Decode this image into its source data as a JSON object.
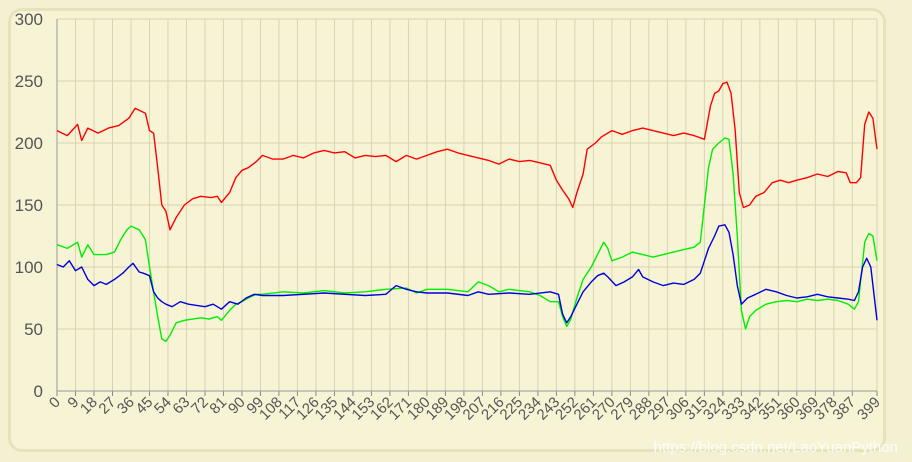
{
  "watermark": "https://blog.csdn.net/LaoYuanPython",
  "chart_data": {
    "type": "line",
    "ylim": [
      0,
      300
    ],
    "yticks": [
      0,
      50,
      100,
      150,
      200,
      250,
      300
    ],
    "x": [
      0,
      399
    ],
    "xticks": [
      0,
      9,
      18,
      27,
      36,
      45,
      54,
      63,
      72,
      81,
      90,
      99,
      108,
      117,
      126,
      135,
      144,
      153,
      162,
      171,
      180,
      189,
      198,
      207,
      216,
      225,
      234,
      243,
      252,
      261,
      270,
      279,
      288,
      297,
      306,
      315,
      324,
      333,
      342,
      351,
      360,
      369,
      378,
      387,
      399
    ],
    "grid": true,
    "series": [
      {
        "color": "#ff0000",
        "points": [
          [
            0,
            210
          ],
          [
            5,
            206
          ],
          [
            10,
            215
          ],
          [
            12,
            202
          ],
          [
            15,
            212
          ],
          [
            20,
            208
          ],
          [
            25,
            212
          ],
          [
            30,
            214
          ],
          [
            35,
            220
          ],
          [
            38,
            228
          ],
          [
            43,
            224
          ],
          [
            45,
            210
          ],
          [
            47,
            208
          ],
          [
            49,
            180
          ],
          [
            51,
            150
          ],
          [
            53,
            145
          ],
          [
            55,
            130
          ],
          [
            58,
            140
          ],
          [
            62,
            150
          ],
          [
            66,
            155
          ],
          [
            70,
            157
          ],
          [
            75,
            156
          ],
          [
            78,
            157
          ],
          [
            80,
            152
          ],
          [
            84,
            160
          ],
          [
            87,
            172
          ],
          [
            90,
            178
          ],
          [
            93,
            180
          ],
          [
            97,
            185
          ],
          [
            100,
            190
          ],
          [
            105,
            187
          ],
          [
            110,
            187
          ],
          [
            115,
            190
          ],
          [
            120,
            188
          ],
          [
            125,
            192
          ],
          [
            130,
            194
          ],
          [
            135,
            192
          ],
          [
            140,
            193
          ],
          [
            145,
            188
          ],
          [
            150,
            190
          ],
          [
            155,
            189
          ],
          [
            160,
            190
          ],
          [
            165,
            185
          ],
          [
            170,
            190
          ],
          [
            175,
            187
          ],
          [
            180,
            190
          ],
          [
            185,
            193
          ],
          [
            190,
            195
          ],
          [
            195,
            192
          ],
          [
            200,
            190
          ],
          [
            205,
            188
          ],
          [
            210,
            186
          ],
          [
            215,
            183
          ],
          [
            220,
            187
          ],
          [
            225,
            185
          ],
          [
            230,
            186
          ],
          [
            235,
            184
          ],
          [
            240,
            182
          ],
          [
            243,
            170
          ],
          [
            246,
            162
          ],
          [
            249,
            155
          ],
          [
            251,
            148
          ],
          [
            253,
            160
          ],
          [
            256,
            175
          ],
          [
            258,
            195
          ],
          [
            262,
            200
          ],
          [
            265,
            205
          ],
          [
            270,
            210
          ],
          [
            275,
            207
          ],
          [
            280,
            210
          ],
          [
            285,
            212
          ],
          [
            290,
            210
          ],
          [
            295,
            208
          ],
          [
            300,
            206
          ],
          [
            305,
            208
          ],
          [
            310,
            206
          ],
          [
            315,
            203
          ],
          [
            318,
            230
          ],
          [
            320,
            240
          ],
          [
            322,
            242
          ],
          [
            324,
            248
          ],
          [
            326,
            249
          ],
          [
            328,
            240
          ],
          [
            330,
            210
          ],
          [
            332,
            160
          ],
          [
            334,
            148
          ],
          [
            337,
            150
          ],
          [
            340,
            157
          ],
          [
            344,
            160
          ],
          [
            348,
            168
          ],
          [
            352,
            170
          ],
          [
            356,
            168
          ],
          [
            360,
            170
          ],
          [
            365,
            172
          ],
          [
            370,
            175
          ],
          [
            375,
            173
          ],
          [
            380,
            177
          ],
          [
            384,
            176
          ],
          [
            386,
            168
          ],
          [
            389,
            168
          ],
          [
            391,
            172
          ],
          [
            393,
            215
          ],
          [
            395,
            225
          ],
          [
            397,
            220
          ],
          [
            399,
            195
          ]
        ]
      },
      {
        "color": "#00ee00",
        "points": [
          [
            0,
            118
          ],
          [
            5,
            115
          ],
          [
            10,
            120
          ],
          [
            12,
            108
          ],
          [
            15,
            118
          ],
          [
            18,
            110
          ],
          [
            24,
            110
          ],
          [
            28,
            112
          ],
          [
            31,
            122
          ],
          [
            34,
            130
          ],
          [
            36,
            133
          ],
          [
            40,
            130
          ],
          [
            43,
            122
          ],
          [
            45,
            100
          ],
          [
            47,
            80
          ],
          [
            49,
            60
          ],
          [
            51,
            42
          ],
          [
            53,
            40
          ],
          [
            55,
            45
          ],
          [
            58,
            55
          ],
          [
            62,
            57
          ],
          [
            66,
            58
          ],
          [
            70,
            59
          ],
          [
            74,
            58
          ],
          [
            78,
            60
          ],
          [
            80,
            57
          ],
          [
            84,
            65
          ],
          [
            87,
            70
          ],
          [
            90,
            72
          ],
          [
            93,
            75
          ],
          [
            97,
            78
          ],
          [
            100,
            78
          ],
          [
            110,
            80
          ],
          [
            120,
            79
          ],
          [
            130,
            81
          ],
          [
            140,
            79
          ],
          [
            150,
            80
          ],
          [
            160,
            82
          ],
          [
            170,
            83
          ],
          [
            175,
            79
          ],
          [
            180,
            82
          ],
          [
            190,
            82
          ],
          [
            200,
            80
          ],
          [
            205,
            88
          ],
          [
            210,
            85
          ],
          [
            215,
            80
          ],
          [
            220,
            82
          ],
          [
            230,
            80
          ],
          [
            235,
            77
          ],
          [
            240,
            72
          ],
          [
            244,
            72
          ],
          [
            246,
            60
          ],
          [
            248,
            52
          ],
          [
            250,
            58
          ],
          [
            253,
            75
          ],
          [
            256,
            90
          ],
          [
            260,
            100
          ],
          [
            263,
            110
          ],
          [
            266,
            120
          ],
          [
            268,
            115
          ],
          [
            270,
            105
          ],
          [
            275,
            108
          ],
          [
            280,
            112
          ],
          [
            285,
            110
          ],
          [
            290,
            108
          ],
          [
            295,
            110
          ],
          [
            300,
            112
          ],
          [
            305,
            114
          ],
          [
            310,
            116
          ],
          [
            313,
            120
          ],
          [
            315,
            150
          ],
          [
            317,
            180
          ],
          [
            319,
            195
          ],
          [
            322,
            200
          ],
          [
            325,
            204
          ],
          [
            327,
            203
          ],
          [
            329,
            175
          ],
          [
            331,
            125
          ],
          [
            333,
            65
          ],
          [
            335,
            50
          ],
          [
            337,
            60
          ],
          [
            340,
            65
          ],
          [
            345,
            70
          ],
          [
            350,
            72
          ],
          [
            355,
            73
          ],
          [
            360,
            72
          ],
          [
            365,
            74
          ],
          [
            370,
            73
          ],
          [
            375,
            74
          ],
          [
            380,
            73
          ],
          [
            385,
            70
          ],
          [
            388,
            66
          ],
          [
            390,
            72
          ],
          [
            393,
            120
          ],
          [
            395,
            127
          ],
          [
            397,
            125
          ],
          [
            399,
            105
          ]
        ]
      },
      {
        "color": "#0000dd",
        "points": [
          [
            0,
            102
          ],
          [
            3,
            100
          ],
          [
            6,
            105
          ],
          [
            9,
            97
          ],
          [
            12,
            100
          ],
          [
            15,
            90
          ],
          [
            18,
            85
          ],
          [
            21,
            88
          ],
          [
            24,
            86
          ],
          [
            28,
            90
          ],
          [
            32,
            95
          ],
          [
            35,
            100
          ],
          [
            37,
            103
          ],
          [
            40,
            96
          ],
          [
            42,
            95
          ],
          [
            45,
            93
          ],
          [
            47,
            80
          ],
          [
            49,
            75
          ],
          [
            51,
            72
          ],
          [
            53,
            70
          ],
          [
            56,
            68
          ],
          [
            60,
            72
          ],
          [
            64,
            70
          ],
          [
            68,
            69
          ],
          [
            72,
            68
          ],
          [
            76,
            70
          ],
          [
            80,
            66
          ],
          [
            84,
            72
          ],
          [
            88,
            70
          ],
          [
            92,
            75
          ],
          [
            96,
            78
          ],
          [
            100,
            77
          ],
          [
            110,
            77
          ],
          [
            120,
            78
          ],
          [
            130,
            79
          ],
          [
            140,
            78
          ],
          [
            150,
            77
          ],
          [
            160,
            78
          ],
          [
            165,
            85
          ],
          [
            170,
            82
          ],
          [
            175,
            80
          ],
          [
            180,
            79
          ],
          [
            190,
            79
          ],
          [
            200,
            77
          ],
          [
            205,
            80
          ],
          [
            210,
            78
          ],
          [
            220,
            79
          ],
          [
            230,
            78
          ],
          [
            240,
            80
          ],
          [
            244,
            78
          ],
          [
            246,
            62
          ],
          [
            248,
            55
          ],
          [
            250,
            60
          ],
          [
            253,
            70
          ],
          [
            256,
            80
          ],
          [
            260,
            88
          ],
          [
            263,
            93
          ],
          [
            266,
            95
          ],
          [
            268,
            92
          ],
          [
            272,
            85
          ],
          [
            276,
            88
          ],
          [
            280,
            92
          ],
          [
            283,
            98
          ],
          [
            285,
            92
          ],
          [
            290,
            88
          ],
          [
            295,
            85
          ],
          [
            300,
            87
          ],
          [
            305,
            86
          ],
          [
            310,
            90
          ],
          [
            313,
            95
          ],
          [
            315,
            105
          ],
          [
            317,
            115
          ],
          [
            320,
            125
          ],
          [
            322,
            133
          ],
          [
            325,
            134
          ],
          [
            327,
            128
          ],
          [
            329,
            110
          ],
          [
            331,
            85
          ],
          [
            333,
            70
          ],
          [
            336,
            75
          ],
          [
            340,
            78
          ],
          [
            345,
            82
          ],
          [
            350,
            80
          ],
          [
            355,
            77
          ],
          [
            360,
            75
          ],
          [
            365,
            76
          ],
          [
            370,
            78
          ],
          [
            375,
            76
          ],
          [
            380,
            75
          ],
          [
            385,
            74
          ],
          [
            388,
            73
          ],
          [
            390,
            80
          ],
          [
            392,
            100
          ],
          [
            394,
            107
          ],
          [
            396,
            100
          ],
          [
            399,
            57
          ]
        ]
      }
    ]
  }
}
